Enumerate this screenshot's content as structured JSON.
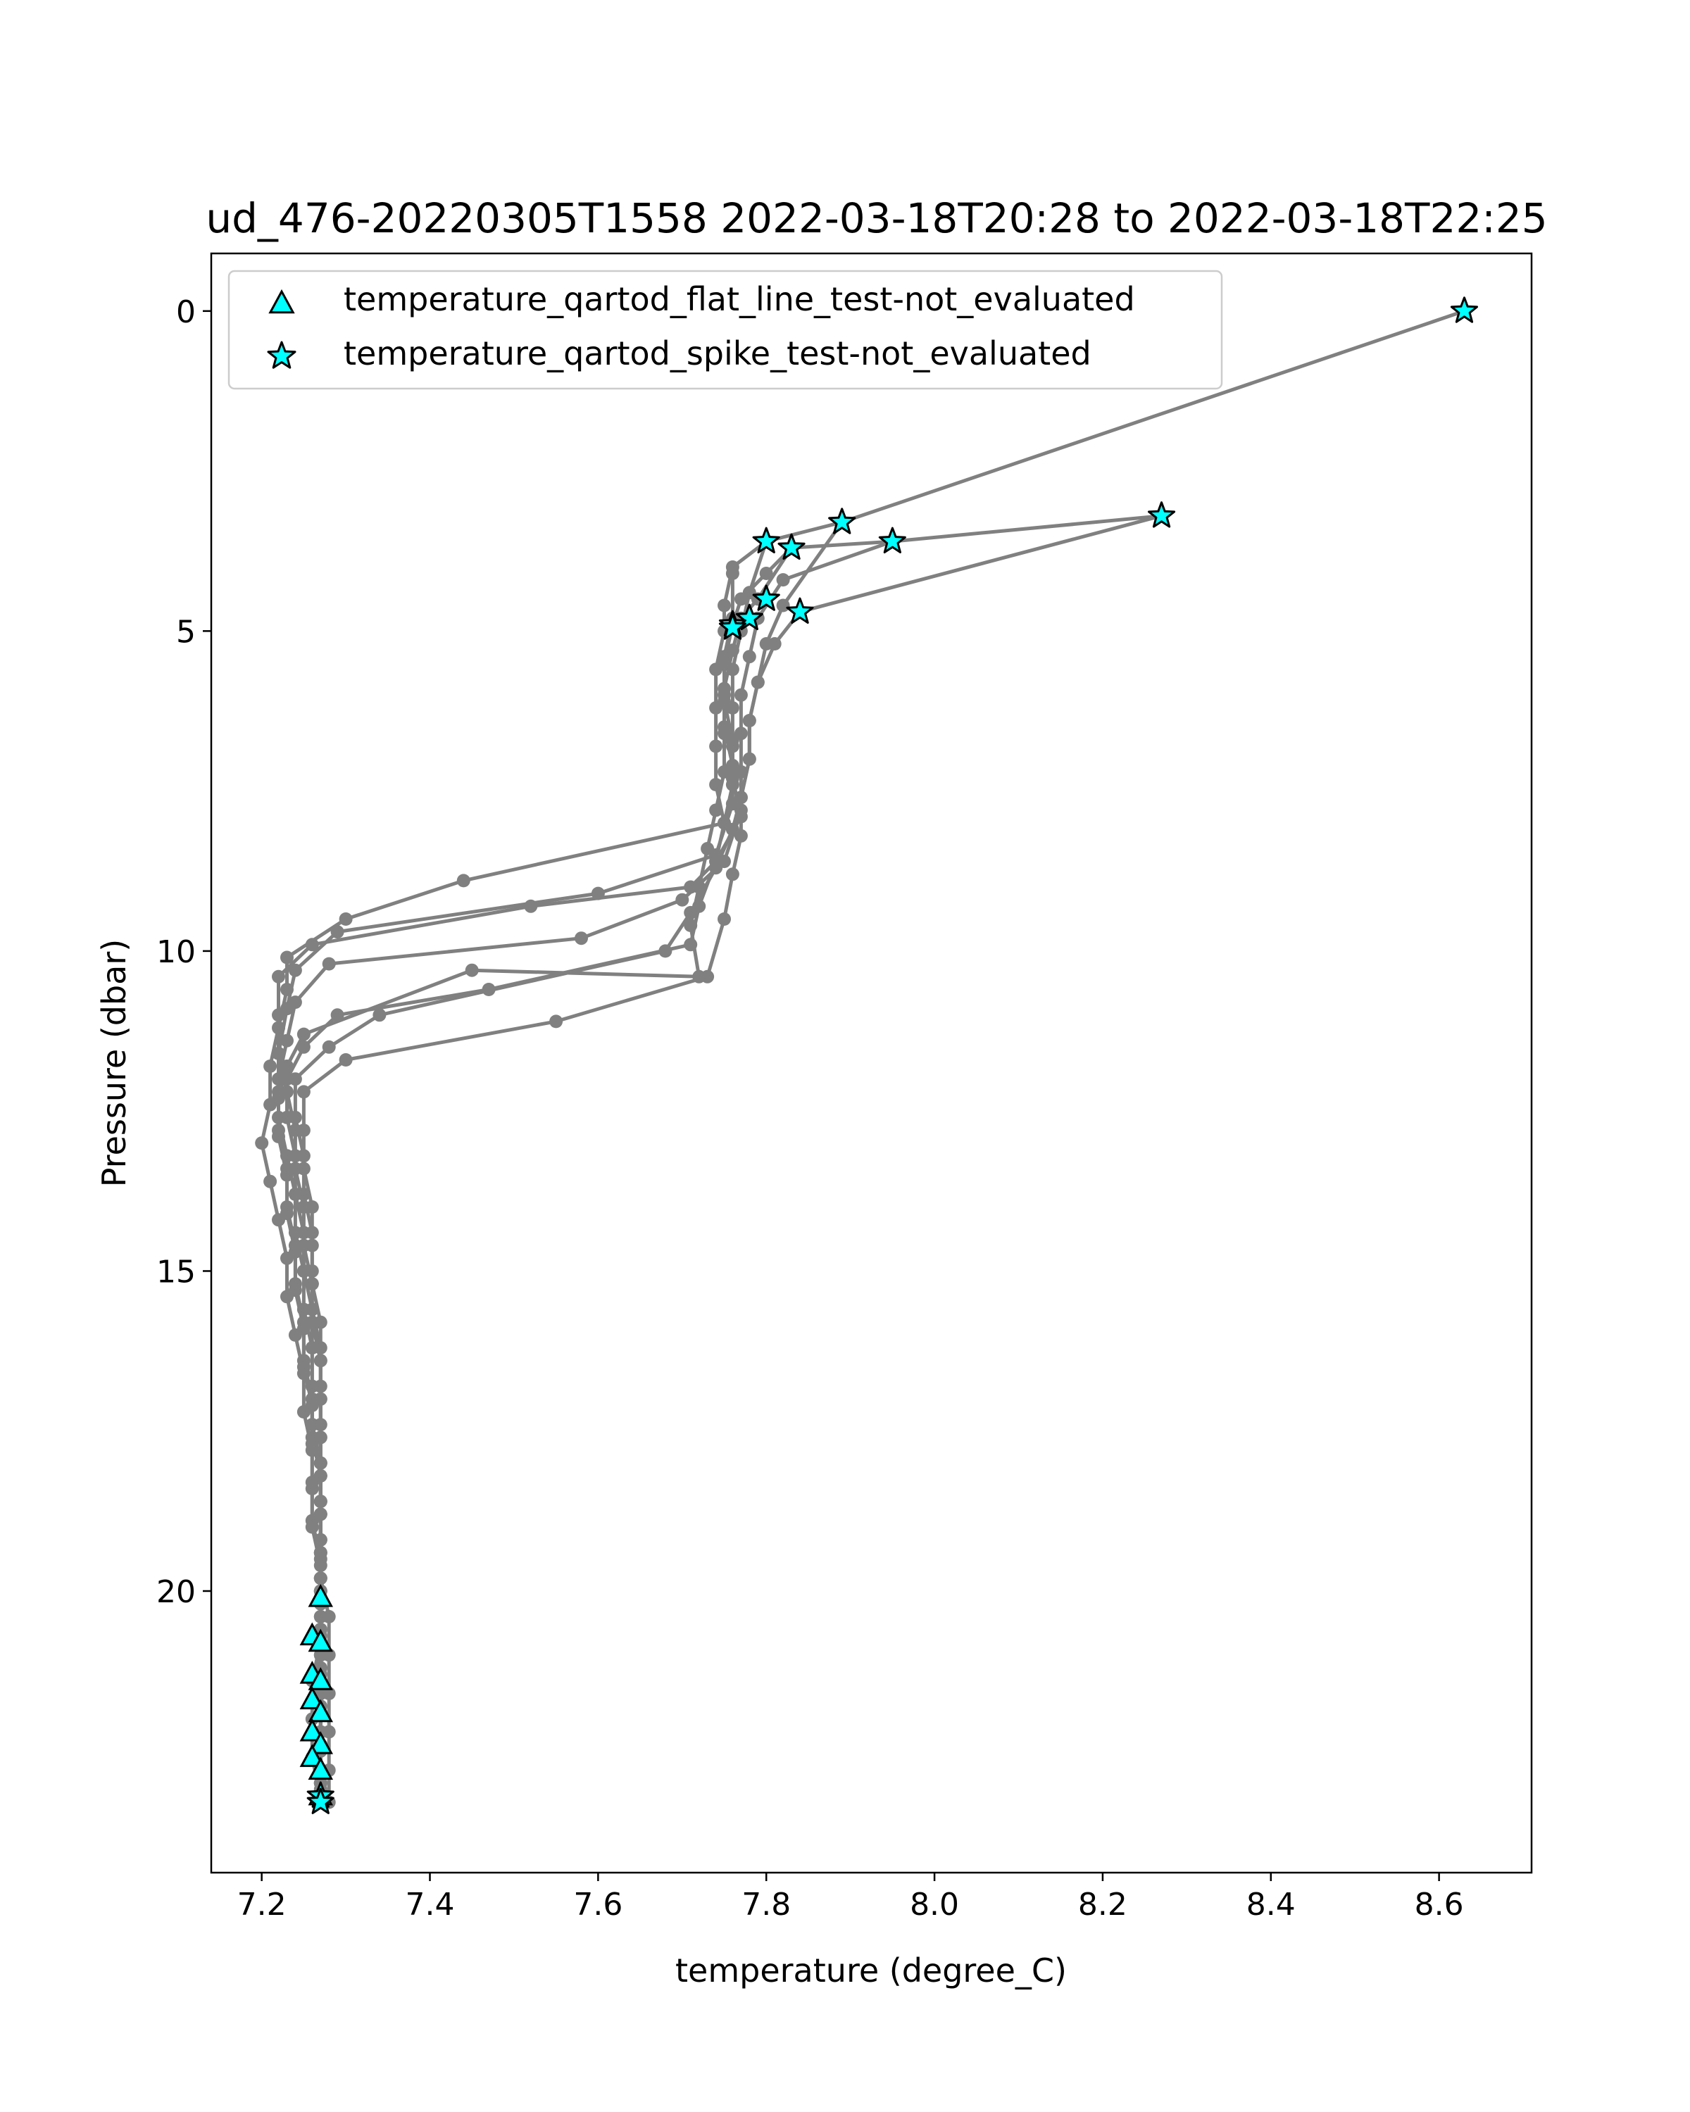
{
  "chart_data": {
    "type": "scatter",
    "title": "ud_476-20220305T1558 2022-03-18T20:28 to 2022-03-18T22:25",
    "xlabel": "temperature (degree_C)",
    "ylabel": "Pressure (dbar)",
    "xlim": [
      7.14,
      8.71
    ],
    "ylim": [
      24.4,
      -0.9
    ],
    "y_inverted": true,
    "x_ticks": [
      "7.2",
      "7.4",
      "7.6",
      "7.8",
      "8.0",
      "8.2",
      "8.4",
      "8.6"
    ],
    "x_tick_values": [
      7.2,
      7.4,
      7.6,
      7.8,
      8.0,
      8.2,
      8.4,
      8.6
    ],
    "y_ticks": [
      "0",
      "5",
      "10",
      "15",
      "20"
    ],
    "y_tick_values": [
      0,
      5,
      10,
      15,
      20
    ],
    "grid": false,
    "legend_position": "top-left",
    "colors": {
      "line": "#808080",
      "marker_fill": "#00ffff",
      "marker_edge": "#000000"
    },
    "series": [
      {
        "role": "profile",
        "points": [
          [
            8.63,
            0.0
          ],
          [
            7.89,
            3.3
          ],
          [
            7.8,
            3.6
          ],
          [
            7.76,
            4.0
          ],
          [
            7.75,
            4.6
          ],
          [
            7.75,
            5.0
          ],
          [
            7.74,
            5.6
          ],
          [
            7.74,
            6.2
          ],
          [
            7.74,
            6.8
          ],
          [
            7.74,
            7.4
          ],
          [
            7.75,
            8.0
          ],
          [
            7.44,
            8.9
          ],
          [
            7.3,
            9.5
          ],
          [
            7.23,
            10.1
          ],
          [
            7.23,
            10.6
          ],
          [
            7.22,
            11.2
          ],
          [
            7.21,
            11.8
          ],
          [
            7.21,
            12.4
          ],
          [
            7.2,
            13.0
          ],
          [
            7.21,
            13.6
          ],
          [
            7.22,
            14.2
          ],
          [
            7.23,
            14.8
          ],
          [
            7.23,
            15.4
          ],
          [
            7.24,
            16.0
          ],
          [
            7.25,
            16.6
          ],
          [
            7.25,
            17.2
          ],
          [
            7.26,
            17.8
          ],
          [
            7.26,
            18.4
          ],
          [
            7.26,
            19.0
          ],
          [
            7.27,
            19.6
          ],
          [
            7.27,
            20.2
          ],
          [
            7.27,
            20.8
          ],
          [
            7.26,
            21.4
          ],
          [
            7.26,
            22.0
          ],
          [
            7.26,
            22.6
          ],
          [
            7.27,
            23.2
          ]
        ]
      },
      {
        "role": "profile",
        "points": [
          [
            8.27,
            3.2
          ],
          [
            7.95,
            3.6
          ],
          [
            7.83,
            3.7
          ],
          [
            7.79,
            4.5
          ],
          [
            7.77,
            4.8
          ],
          [
            7.76,
            5.3
          ],
          [
            7.75,
            5.9
          ],
          [
            7.75,
            6.5
          ],
          [
            7.76,
            7.1
          ],
          [
            7.76,
            7.7
          ],
          [
            7.74,
            8.5
          ],
          [
            7.6,
            9.1
          ],
          [
            7.29,
            9.7
          ],
          [
            7.24,
            10.3
          ],
          [
            7.23,
            10.9
          ],
          [
            7.22,
            11.6
          ],
          [
            7.22,
            12.2
          ],
          [
            7.22,
            12.8
          ],
          [
            7.23,
            13.4
          ],
          [
            7.23,
            14.0
          ],
          [
            7.24,
            14.6
          ],
          [
            7.24,
            15.2
          ],
          [
            7.25,
            15.8
          ],
          [
            7.25,
            16.4
          ],
          [
            7.26,
            17.0
          ],
          [
            7.26,
            17.6
          ],
          [
            7.27,
            18.2
          ],
          [
            7.27,
            18.8
          ],
          [
            7.27,
            19.4
          ],
          [
            7.27,
            20.0
          ],
          [
            7.27,
            20.6
          ],
          [
            7.27,
            21.2
          ],
          [
            7.27,
            21.8
          ],
          [
            7.27,
            22.4
          ],
          [
            7.27,
            23.0
          ]
        ]
      },
      {
        "role": "profile",
        "points": [
          [
            7.83,
            3.7
          ],
          [
            7.8,
            4.1
          ],
          [
            7.77,
            4.5
          ],
          [
            7.76,
            4.9
          ],
          [
            7.75,
            5.5
          ],
          [
            7.75,
            6.1
          ],
          [
            7.76,
            6.7
          ],
          [
            7.76,
            7.3
          ],
          [
            7.77,
            7.9
          ],
          [
            7.74,
            8.6
          ],
          [
            7.71,
            9.0
          ],
          [
            7.52,
            9.3
          ],
          [
            7.26,
            9.9
          ],
          [
            7.22,
            10.4
          ],
          [
            7.22,
            11.0
          ],
          [
            7.22,
            11.6
          ],
          [
            7.23,
            12.2
          ],
          [
            7.24,
            12.8
          ],
          [
            7.24,
            13.4
          ],
          [
            7.25,
            14.0
          ],
          [
            7.25,
            14.6
          ],
          [
            7.26,
            15.2
          ],
          [
            7.26,
            15.8
          ],
          [
            7.27,
            16.4
          ],
          [
            7.27,
            17.0
          ],
          [
            7.27,
            17.6
          ],
          [
            7.27,
            18.2
          ],
          [
            7.27,
            18.8
          ],
          [
            7.27,
            19.4
          ],
          [
            7.27,
            20.0
          ],
          [
            7.27,
            20.6
          ],
          [
            7.27,
            21.2
          ],
          [
            7.27,
            21.8
          ],
          [
            7.27,
            22.4
          ],
          [
            7.27,
            23.0
          ]
        ]
      },
      {
        "role": "profile",
        "points": [
          [
            7.95,
            3.6
          ],
          [
            7.82,
            4.2
          ],
          [
            7.79,
            4.8
          ],
          [
            7.78,
            5.4
          ],
          [
            7.77,
            6.0
          ],
          [
            7.77,
            6.6
          ],
          [
            7.77,
            7.2
          ],
          [
            7.77,
            7.8
          ],
          [
            7.75,
            8.6
          ],
          [
            7.7,
            9.2
          ],
          [
            7.58,
            9.8
          ],
          [
            7.28,
            10.2
          ],
          [
            7.24,
            10.8
          ],
          [
            7.23,
            11.4
          ],
          [
            7.22,
            12.0
          ],
          [
            7.22,
            12.6
          ],
          [
            7.23,
            13.2
          ],
          [
            7.24,
            13.8
          ],
          [
            7.24,
            14.4
          ],
          [
            7.25,
            15.0
          ],
          [
            7.25,
            15.6
          ],
          [
            7.26,
            16.2
          ],
          [
            7.26,
            16.8
          ],
          [
            7.26,
            17.4
          ],
          [
            7.27,
            18.0
          ],
          [
            7.27,
            18.6
          ],
          [
            7.27,
            19.2
          ],
          [
            7.27,
            19.8
          ],
          [
            7.27,
            20.4
          ],
          [
            7.27,
            21.0
          ],
          [
            7.27,
            21.6
          ],
          [
            7.27,
            22.2
          ],
          [
            7.27,
            22.8
          ]
        ]
      },
      {
        "role": "profile",
        "points": [
          [
            8.27,
            3.2
          ],
          [
            7.84,
            4.7
          ],
          [
            7.81,
            5.2
          ],
          [
            7.79,
            5.8
          ],
          [
            7.78,
            6.4
          ],
          [
            7.78,
            7.0
          ],
          [
            7.77,
            7.6
          ],
          [
            7.76,
            8.1
          ],
          [
            7.74,
            8.7
          ],
          [
            7.71,
            9.4
          ],
          [
            7.68,
            10.0
          ],
          [
            7.34,
            11.0
          ],
          [
            7.28,
            11.5
          ],
          [
            7.24,
            12.0
          ],
          [
            7.24,
            12.6
          ],
          [
            7.25,
            13.2
          ],
          [
            7.25,
            13.8
          ],
          [
            7.26,
            14.4
          ],
          [
            7.26,
            15.0
          ],
          [
            7.26,
            15.6
          ],
          [
            7.27,
            16.2
          ],
          [
            7.27,
            16.8
          ],
          [
            7.27,
            17.4
          ],
          [
            7.27,
            18.0
          ],
          [
            7.27,
            18.6
          ],
          [
            7.27,
            19.2
          ],
          [
            7.27,
            19.8
          ],
          [
            7.28,
            20.4
          ],
          [
            7.28,
            21.0
          ],
          [
            7.28,
            21.6
          ],
          [
            7.28,
            22.2
          ],
          [
            7.28,
            22.8
          ],
          [
            7.28,
            23.3
          ]
        ]
      },
      {
        "role": "profile",
        "points": [
          [
            7.8,
            3.6
          ],
          [
            7.78,
            4.4
          ],
          [
            7.77,
            5.0
          ],
          [
            7.76,
            5.6
          ],
          [
            7.76,
            6.2
          ],
          [
            7.76,
            6.8
          ],
          [
            7.76,
            7.4
          ],
          [
            7.75,
            8.0
          ],
          [
            7.74,
            8.6
          ],
          [
            7.72,
            9.3
          ],
          [
            7.71,
            9.9
          ],
          [
            7.47,
            10.6
          ],
          [
            7.29,
            11.0
          ],
          [
            7.25,
            11.5
          ],
          [
            7.23,
            12.0
          ],
          [
            7.23,
            12.6
          ],
          [
            7.24,
            13.2
          ],
          [
            7.24,
            13.8
          ],
          [
            7.25,
            14.4
          ],
          [
            7.25,
            15.0
          ],
          [
            7.26,
            15.6
          ],
          [
            7.26,
            16.2
          ],
          [
            7.26,
            16.8
          ],
          [
            7.26,
            17.4
          ],
          [
            7.27,
            18.0
          ],
          [
            7.27,
            18.6
          ],
          [
            7.27,
            19.2
          ],
          [
            7.27,
            19.8
          ],
          [
            7.27,
            20.4
          ],
          [
            7.27,
            21.0
          ],
          [
            7.27,
            21.6
          ],
          [
            7.27,
            22.2
          ],
          [
            7.27,
            22.8
          ]
        ]
      },
      {
        "role": "profile",
        "points": [
          [
            7.89,
            3.3
          ],
          [
            7.82,
            4.6
          ],
          [
            7.8,
            5.2
          ],
          [
            7.79,
            5.8
          ],
          [
            7.78,
            6.4
          ],
          [
            7.78,
            7.0
          ],
          [
            7.77,
            7.6
          ],
          [
            7.77,
            8.2
          ],
          [
            7.76,
            8.8
          ],
          [
            7.75,
            9.5
          ],
          [
            7.73,
            10.4
          ],
          [
            7.55,
            11.1
          ],
          [
            7.3,
            11.7
          ],
          [
            7.25,
            12.2
          ],
          [
            7.25,
            12.8
          ],
          [
            7.25,
            13.4
          ],
          [
            7.26,
            14.0
          ],
          [
            7.26,
            14.6
          ],
          [
            7.26,
            15.2
          ],
          [
            7.27,
            15.8
          ],
          [
            7.27,
            16.4
          ],
          [
            7.27,
            17.0
          ],
          [
            7.27,
            17.6
          ],
          [
            7.27,
            18.2
          ],
          [
            7.27,
            18.8
          ],
          [
            7.27,
            19.4
          ],
          [
            7.27,
            20.0
          ],
          [
            7.27,
            20.6
          ],
          [
            7.27,
            21.2
          ],
          [
            7.27,
            21.8
          ],
          [
            7.27,
            22.4
          ],
          [
            7.27,
            23.0
          ]
        ]
      },
      {
        "role": "profile",
        "points": [
          [
            7.76,
            4.1
          ],
          [
            7.76,
            4.8
          ],
          [
            7.75,
            5.4
          ],
          [
            7.75,
            6.0
          ],
          [
            7.75,
            6.6
          ],
          [
            7.75,
            7.2
          ],
          [
            7.74,
            7.8
          ],
          [
            7.73,
            8.4
          ],
          [
            7.72,
            9.0
          ],
          [
            7.71,
            9.6
          ],
          [
            7.72,
            10.4
          ],
          [
            7.45,
            10.3
          ],
          [
            7.25,
            11.3
          ],
          [
            7.23,
            11.8
          ],
          [
            7.22,
            12.3
          ],
          [
            7.22,
            12.9
          ],
          [
            7.23,
            13.5
          ],
          [
            7.23,
            14.1
          ],
          [
            7.24,
            14.7
          ],
          [
            7.24,
            15.3
          ],
          [
            7.25,
            15.9
          ],
          [
            7.25,
            16.5
          ],
          [
            7.26,
            17.1
          ],
          [
            7.26,
            17.7
          ],
          [
            7.26,
            18.3
          ],
          [
            7.26,
            18.9
          ],
          [
            7.27,
            19.5
          ],
          [
            7.27,
            20.1
          ],
          [
            7.27,
            20.7
          ],
          [
            7.27,
            21.3
          ],
          [
            7.27,
            21.9
          ],
          [
            7.27,
            22.5
          ],
          [
            7.27,
            23.1
          ]
        ]
      }
    ],
    "legend": [
      {
        "label": "temperature_qartod_flat_line_test-not_evaluated",
        "marker": "triangle"
      },
      {
        "label": "temperature_qartod_spike_test-not_evaluated",
        "marker": "star"
      }
    ],
    "flat_line_points": [
      [
        7.27,
        20.1
      ],
      [
        7.26,
        20.7
      ],
      [
        7.27,
        20.8
      ],
      [
        7.26,
        21.3
      ],
      [
        7.27,
        21.4
      ],
      [
        7.26,
        21.7
      ],
      [
        7.27,
        21.9
      ],
      [
        7.26,
        22.2
      ],
      [
        7.27,
        22.4
      ],
      [
        7.26,
        22.6
      ],
      [
        7.27,
        22.8
      ],
      [
        7.27,
        23.2
      ]
    ],
    "spike_points": [
      [
        8.63,
        0.0
      ],
      [
        8.27,
        3.2
      ],
      [
        7.89,
        3.3
      ],
      [
        7.95,
        3.6
      ],
      [
        7.8,
        3.6
      ],
      [
        7.83,
        3.7
      ],
      [
        7.84,
        4.7
      ],
      [
        7.8,
        4.5
      ],
      [
        7.78,
        4.8
      ],
      [
        7.76,
        4.9
      ],
      [
        7.76,
        4.95
      ],
      [
        7.27,
        23.2
      ],
      [
        7.27,
        23.3
      ]
    ]
  }
}
